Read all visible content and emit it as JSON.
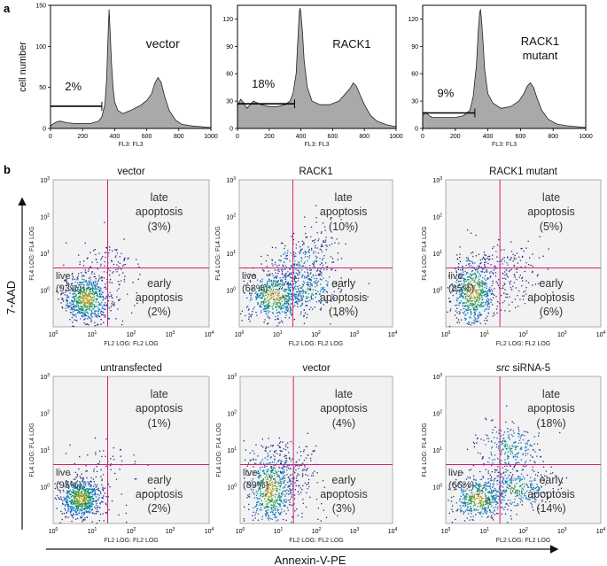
{
  "figure": {
    "panel_a_letter": "a",
    "panel_b_letter": "b",
    "y_axis_title": "7-AAD",
    "x_axis_title": "Annexin-V-PE"
  },
  "chart_data": [
    {
      "type": "area",
      "panel": "a",
      "title": "vector",
      "ylabel": "cell number",
      "xlabel": "FL3: FL3",
      "xlim": [
        0,
        1000
      ],
      "ylim": [
        0,
        150
      ],
      "xticks": [
        0,
        200,
        400,
        600,
        800,
        1000
      ],
      "yticks": [
        0,
        50,
        100,
        150
      ],
      "subG1_percent_label": "2%",
      "gate": {
        "x_start": 0,
        "x_end": 320,
        "y": 27
      },
      "x": [
        0,
        20,
        40,
        60,
        80,
        100,
        150,
        200,
        250,
        300,
        320,
        340,
        350,
        360,
        365,
        370,
        380,
        390,
        400,
        420,
        450,
        500,
        560,
        600,
        630,
        650,
        670,
        690,
        710,
        740,
        780,
        820,
        880,
        950,
        1000
      ],
      "y": [
        3,
        6,
        8,
        9,
        8,
        7,
        6,
        6,
        6,
        9,
        14,
        30,
        60,
        120,
        145,
        125,
        80,
        50,
        32,
        22,
        18,
        22,
        28,
        34,
        42,
        55,
        62,
        56,
        40,
        22,
        10,
        5,
        3,
        2,
        1
      ]
    },
    {
      "type": "area",
      "panel": "a",
      "title": "RACK1",
      "ylabel": "",
      "xlabel": "FL3: FL3",
      "xlim": [
        0,
        1000
      ],
      "ylim": [
        0,
        135
      ],
      "xticks": [
        0,
        200,
        400,
        600,
        800,
        1000
      ],
      "yticks": [
        0,
        30,
        60,
        90,
        120
      ],
      "subG1_percent_label": "18%",
      "gate": {
        "x_start": 0,
        "x_end": 360,
        "y": 27
      },
      "x": [
        0,
        20,
        40,
        60,
        80,
        100,
        150,
        200,
        250,
        300,
        330,
        350,
        370,
        380,
        390,
        395,
        400,
        410,
        420,
        440,
        470,
        520,
        580,
        640,
        680,
        710,
        730,
        750,
        770,
        800,
        840,
        880,
        940,
        1000
      ],
      "y": [
        25,
        32,
        28,
        22,
        26,
        30,
        26,
        24,
        24,
        26,
        30,
        38,
        60,
        95,
        128,
        132,
        126,
        105,
        75,
        45,
        30,
        26,
        26,
        30,
        38,
        44,
        50,
        46,
        38,
        26,
        14,
        8,
        4,
        2
      ]
    },
    {
      "type": "area",
      "panel": "a",
      "title": "RACK1 mutant",
      "ylabel": "",
      "xlabel": "FL3: FL3",
      "xlim": [
        0,
        1000
      ],
      "ylim": [
        0,
        135
      ],
      "xticks": [
        0,
        200,
        400,
        600,
        800,
        1000
      ],
      "yticks": [
        0,
        30,
        60,
        90,
        120
      ],
      "subG1_percent_label": "9%",
      "gate": {
        "x_start": 0,
        "x_end": 320,
        "y": 17
      },
      "x": [
        0,
        20,
        40,
        60,
        100,
        150,
        200,
        250,
        290,
        310,
        330,
        340,
        350,
        355,
        360,
        370,
        380,
        400,
        430,
        480,
        540,
        590,
        620,
        640,
        660,
        680,
        700,
        730,
        770,
        820,
        880,
        940,
        1000
      ],
      "y": [
        14,
        18,
        14,
        12,
        12,
        12,
        12,
        14,
        20,
        35,
        70,
        105,
        128,
        130,
        122,
        95,
        65,
        38,
        28,
        22,
        24,
        30,
        38,
        46,
        50,
        45,
        34,
        20,
        10,
        5,
        3,
        2,
        1
      ]
    },
    {
      "type": "scatter",
      "panel": "b",
      "title": "vector",
      "xlabel": "FL2 LOG: FL2 LOG",
      "ylabel": "FL4 LOG: FL4 LOG",
      "scale": "log",
      "xlim": [
        1,
        10000
      ],
      "ylim": [
        0.1,
        1000
      ],
      "x_gate": 25,
      "y_gate": 4,
      "live_label": "live",
      "live_pct": "(93%)",
      "late_label_1": "late",
      "late_label_2": "apoptosis",
      "late_pct": "(3%)",
      "early_label_1": "early",
      "early_label_2": "apoptosis",
      "early_pct": "(2%)",
      "clusters": [
        {
          "cx": 7,
          "cy": 0.6,
          "sx": 0.22,
          "sy": 0.24,
          "n": 650
        },
        {
          "cx": 30,
          "cy": 6,
          "sx": 0.28,
          "sy": 0.18,
          "n": 70
        },
        {
          "cx": 20,
          "cy": 1.2,
          "sx": 0.4,
          "sy": 0.4,
          "n": 60
        }
      ]
    },
    {
      "type": "scatter",
      "panel": "b",
      "title": "RACK1",
      "xlabel": "FL2 LOG: FL2 LOG",
      "ylabel": "FL4 LOG: FL4 LOG",
      "scale": "log",
      "xlim": [
        1,
        10000
      ],
      "ylim": [
        0.1,
        1000
      ],
      "x_gate": 25,
      "y_gate": 4,
      "live_label": "live",
      "live_pct": "(68%)",
      "late_label_1": "late",
      "late_label_2": "apoptosis",
      "late_pct": "(10%)",
      "early_label_1": "early",
      "early_label_2": "apoptosis",
      "early_pct": "(18%)",
      "clusters": [
        {
          "cx": 8,
          "cy": 0.7,
          "sx": 0.28,
          "sy": 0.25,
          "n": 520
        },
        {
          "cx": 60,
          "cy": 1.0,
          "sx": 0.3,
          "sy": 0.22,
          "n": 260
        },
        {
          "cx": 40,
          "cy": 6,
          "sx": 0.3,
          "sy": 0.22,
          "n": 220
        },
        {
          "cx": 150,
          "cy": 20,
          "sx": 0.25,
          "sy": 0.3,
          "n": 60
        }
      ]
    },
    {
      "type": "scatter",
      "panel": "b",
      "title": "RACK1 mutant",
      "xlabel": "FL2 LOG: FL2 LOG",
      "ylabel": "FL4 LOG: FL4 LOG",
      "scale": "log",
      "xlim": [
        1,
        10000
      ],
      "ylim": [
        0.1,
        1000
      ],
      "x_gate": 25,
      "y_gate": 4,
      "live_label": "live",
      "live_pct": "(85%)",
      "late_label_1": "late",
      "late_label_2": "apoptosis",
      "late_pct": "(5%)",
      "early_label_1": "early",
      "early_label_2": "apoptosis",
      "early_pct": "(6%)",
      "clusters": [
        {
          "cx": 5,
          "cy": 0.9,
          "sx": 0.2,
          "sy": 0.35,
          "n": 600
        },
        {
          "cx": 30,
          "cy": 5,
          "sx": 0.3,
          "sy": 0.2,
          "n": 120
        },
        {
          "cx": 40,
          "cy": 1.0,
          "sx": 0.3,
          "sy": 0.3,
          "n": 90
        }
      ]
    },
    {
      "type": "scatter",
      "panel": "b",
      "title": "untransfected",
      "xlabel": "FL2 LOG: FL2 LOG",
      "ylabel": "FL4 LOG: FL4 LOG",
      "scale": "log",
      "xlim": [
        1,
        10000
      ],
      "ylim": [
        0.1,
        1000
      ],
      "x_gate": 25,
      "y_gate": 4,
      "live_label": "live",
      "live_pct": "(95%)",
      "late_label_1": "late",
      "late_label_2": "apoptosis",
      "late_pct": "(1%)",
      "early_label_1": "early",
      "early_label_2": "apoptosis",
      "early_pct": "(2%)",
      "clusters": [
        {
          "cx": 5,
          "cy": 0.5,
          "sx": 0.2,
          "sy": 0.2,
          "n": 700
        },
        {
          "cx": 20,
          "cy": 6,
          "sx": 0.3,
          "sy": 0.2,
          "n": 30
        },
        {
          "cx": 20,
          "cy": 1.0,
          "sx": 0.4,
          "sy": 0.4,
          "n": 40
        }
      ]
    },
    {
      "type": "scatter",
      "panel": "b",
      "title": "vector",
      "xlabel": "FL2 LOG: FL2 LOG",
      "ylabel": "FL4 LOG: FL4 LOG",
      "scale": "log",
      "xlim": [
        1,
        10000
      ],
      "ylim": [
        0.1,
        1000
      ],
      "x_gate": 25,
      "y_gate": 4,
      "live_label": "live",
      "live_pct": "(89%)",
      "late_label_1": "late",
      "late_label_2": "apoptosis",
      "late_pct": "(4%)",
      "early_label_1": "early",
      "early_label_2": "apoptosis",
      "early_pct": "(3%)",
      "clusters": [
        {
          "cx": 6,
          "cy": 0.9,
          "sx": 0.22,
          "sy": 0.4,
          "n": 620
        },
        {
          "cx": 20,
          "cy": 5,
          "sx": 0.25,
          "sy": 0.25,
          "n": 110
        },
        {
          "cx": 40,
          "cy": 1.0,
          "sx": 0.3,
          "sy": 0.3,
          "n": 70
        }
      ]
    },
    {
      "type": "scatter",
      "panel": "b",
      "title_prefix": "src",
      "title": " siRNA-5",
      "xlabel": "FL2 LOG: FL2 LOG",
      "ylabel": "FL4 LOG: FL4 LOG",
      "scale": "log",
      "xlim": [
        1,
        10000
      ],
      "ylim": [
        0.1,
        1000
      ],
      "x_gate": 25,
      "y_gate": 4,
      "live_label": "live",
      "live_pct": "(66%)",
      "late_label_1": "late",
      "late_label_2": "apoptosis",
      "late_pct": "(18%)",
      "early_label_1": "early",
      "early_label_2": "apoptosis",
      "early_pct": "(14%)",
      "clusters": [
        {
          "cx": 7,
          "cy": 0.5,
          "sx": 0.25,
          "sy": 0.22,
          "n": 450
        },
        {
          "cx": 60,
          "cy": 0.9,
          "sx": 0.35,
          "sy": 0.2,
          "n": 300
        },
        {
          "cx": 40,
          "cy": 12,
          "sx": 0.3,
          "sy": 0.25,
          "n": 260
        }
      ]
    }
  ]
}
